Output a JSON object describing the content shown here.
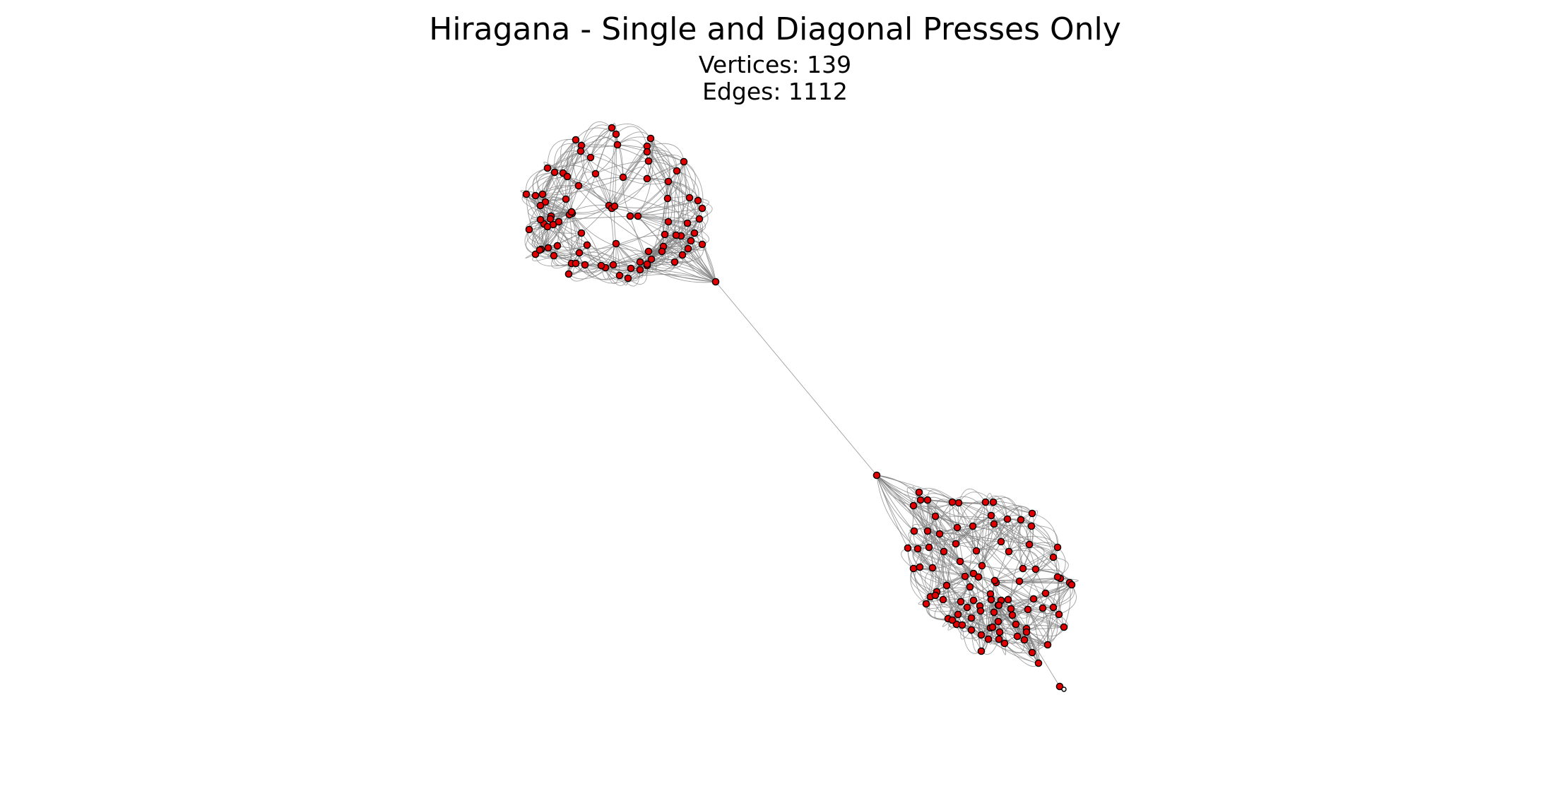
{
  "title": "Hiragana - Single and Diagonal Presses Only",
  "vertices_label": "Vertices: 139",
  "edges_label": "Edges: 1112",
  "colors": {
    "node_fill": "#e00000",
    "node_stroke": "#000000",
    "edge": "#7f7f7f",
    "background": "#ffffff"
  }
}
